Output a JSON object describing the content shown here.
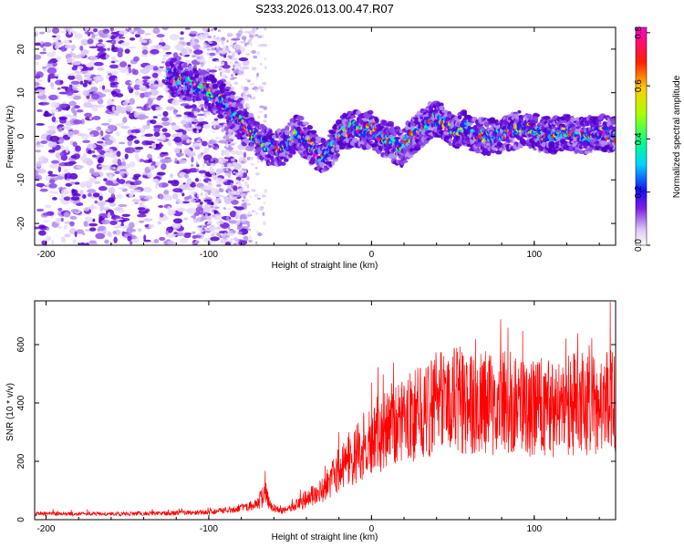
{
  "title": "S233.2026.013.00.47.R07",
  "chart_data": [
    {
      "type": "heatmap",
      "name": "spectrogram",
      "xlabel": "Height of straight line (km)",
      "ylabel": "Frequency (Hz)",
      "xlim": [
        -207,
        150
      ],
      "ylim": [
        -25,
        25
      ],
      "xticks": [
        -200,
        -100,
        0,
        100
      ],
      "yticks": [
        -20,
        -10,
        0,
        10,
        20
      ],
      "colorbar": {
        "label": "Normalized spectral amplitude",
        "range": [
          0,
          0.82
        ],
        "ticks": [
          "0.0",
          "0.2",
          "0.4",
          "0.6",
          "0.8"
        ]
      },
      "ridge": {
        "x": [
          -125,
          -110,
          -100,
          -90,
          -80,
          -72,
          -65,
          -55,
          -45,
          -38,
          -30,
          -25,
          -20,
          -12,
          -5,
          0,
          5,
          12,
          18,
          25,
          32,
          38,
          45,
          52,
          58,
          65,
          75,
          85,
          95,
          100,
          110,
          120,
          130,
          140,
          150
        ],
        "y": [
          14,
          12,
          10,
          8,
          3,
          0,
          -2,
          -3,
          1,
          -2,
          -5,
          -3,
          0,
          2,
          1,
          2,
          0,
          -1,
          -3,
          0,
          2,
          4,
          3,
          1,
          2,
          0,
          0,
          1,
          2,
          1,
          0,
          1,
          0,
          1,
          0
        ]
      }
    },
    {
      "type": "line",
      "name": "snr",
      "xlabel": "Height of straight line (km)",
      "ylabel": "SNR (10 * v/v)",
      "xlim": [
        -207,
        150
      ],
      "ylim": [
        0,
        750
      ],
      "xticks": [
        -200,
        -100,
        0,
        100
      ],
      "yticks": [
        0,
        200,
        400,
        600
      ],
      "color": "#ff0000",
      "envelope": {
        "x": [
          -207,
          -150,
          -100,
          -80,
          -70,
          -65,
          -62,
          -55,
          -50,
          -40,
          -30,
          -20,
          -10,
          0,
          10,
          20,
          30,
          40,
          50,
          60,
          70,
          80,
          90,
          100,
          110,
          120,
          130,
          140,
          150
        ],
        "y": [
          20,
          20,
          25,
          40,
          55,
          90,
          45,
          30,
          40,
          70,
          100,
          170,
          220,
          270,
          310,
          340,
          370,
          400,
          410,
          410,
          400,
          400,
          390,
          390,
          380,
          390,
          400,
          400,
          400
        ]
      }
    }
  ]
}
